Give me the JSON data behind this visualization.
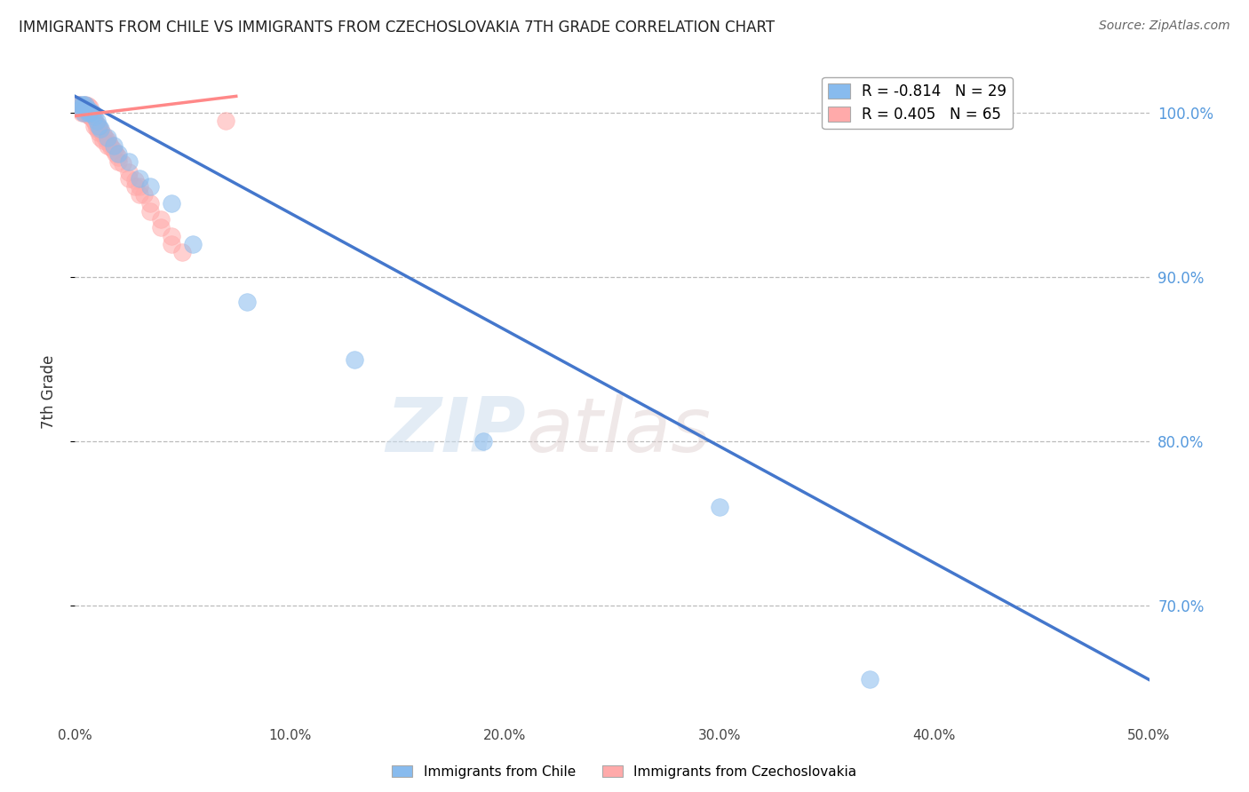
{
  "title": "IMMIGRANTS FROM CHILE VS IMMIGRANTS FROM CZECHOSLOVAKIA 7TH GRADE CORRELATION CHART",
  "source": "Source: ZipAtlas.com",
  "ylabel": "7th Grade",
  "xlim": [
    0.0,
    50.0
  ],
  "ylim": [
    63.0,
    103.0
  ],
  "ytick_labels": [
    "100.0%",
    "90.0%",
    "80.0%",
    "70.0%"
  ],
  "ytick_values": [
    100.0,
    90.0,
    80.0,
    70.0
  ],
  "xtick_values": [
    0.0,
    10.0,
    20.0,
    30.0,
    40.0,
    50.0
  ],
  "xtick_labels": [
    "0.0%",
    "10.0%",
    "20.0%",
    "30.0%",
    "40.0%",
    "50.0%"
  ],
  "legend_blue_r": "R = -0.814",
  "legend_blue_n": "N = 29",
  "legend_pink_r": "R = 0.405",
  "legend_pink_n": "N = 65",
  "blue_color": "#88BBEE",
  "pink_color": "#FFAAAA",
  "blue_line_color": "#4477CC",
  "pink_line_color": "#FF8888",
  "watermark_zip": "ZIP",
  "watermark_atlas": "atlas",
  "background_color": "#FFFFFF",
  "grid_color": "#BBBBBB",
  "chile_scatter_x": [
    0.2,
    0.3,
    0.4,
    0.5,
    0.6,
    0.7,
    0.8,
    0.9,
    1.0,
    1.2,
    1.5,
    1.8,
    2.0,
    2.5,
    3.0,
    3.5,
    4.5,
    5.5,
    8.0,
    13.0,
    19.0,
    30.0,
    37.0,
    0.3,
    0.5,
    0.7,
    0.4,
    0.6,
    1.1
  ],
  "chile_scatter_y": [
    100.5,
    100.5,
    100.5,
    100.5,
    100.2,
    100.0,
    100.0,
    99.8,
    99.5,
    99.0,
    98.5,
    98.0,
    97.5,
    97.0,
    96.0,
    95.5,
    94.5,
    92.0,
    88.5,
    85.0,
    80.0,
    76.0,
    65.5,
    100.3,
    100.2,
    100.1,
    100.0,
    100.0,
    99.2
  ],
  "czech_scatter_x": [
    0.1,
    0.15,
    0.2,
    0.25,
    0.3,
    0.35,
    0.4,
    0.45,
    0.5,
    0.55,
    0.6,
    0.65,
    0.7,
    0.75,
    0.8,
    0.85,
    0.9,
    0.95,
    1.0,
    1.1,
    1.2,
    1.3,
    1.4,
    1.5,
    1.6,
    1.7,
    1.8,
    1.9,
    2.0,
    2.2,
    2.5,
    2.8,
    3.0,
    3.5,
    4.0,
    4.5,
    5.0,
    0.2,
    0.3,
    0.4,
    0.5,
    0.6,
    0.7,
    0.8,
    0.5,
    0.6,
    0.7,
    1.0,
    1.2,
    1.5,
    2.0,
    3.0,
    4.0,
    4.5,
    2.5,
    3.5,
    0.3,
    0.4,
    7.0,
    0.9,
    1.1,
    1.3,
    2.8,
    3.2,
    0.25
  ],
  "czech_scatter_y": [
    100.5,
    100.5,
    100.5,
    100.4,
    100.4,
    100.3,
    100.3,
    100.2,
    100.2,
    100.1,
    100.0,
    100.0,
    99.9,
    99.8,
    99.7,
    99.6,
    99.5,
    99.4,
    99.3,
    99.1,
    98.9,
    98.7,
    98.5,
    98.3,
    98.1,
    97.9,
    97.7,
    97.5,
    97.3,
    96.9,
    96.4,
    95.9,
    95.5,
    94.5,
    93.5,
    92.5,
    91.5,
    100.3,
    100.2,
    100.1,
    100.0,
    99.9,
    99.8,
    99.7,
    100.5,
    100.4,
    100.3,
    99.0,
    98.5,
    98.0,
    97.0,
    95.0,
    93.0,
    92.0,
    96.0,
    94.0,
    100.0,
    100.0,
    99.5,
    99.2,
    98.8,
    98.3,
    95.5,
    95.0,
    100.3
  ],
  "blue_line_x": [
    0.0,
    50.0
  ],
  "blue_line_y": [
    101.0,
    65.5
  ],
  "pink_line_x": [
    0.0,
    7.5
  ],
  "pink_line_y": [
    99.8,
    101.0
  ]
}
